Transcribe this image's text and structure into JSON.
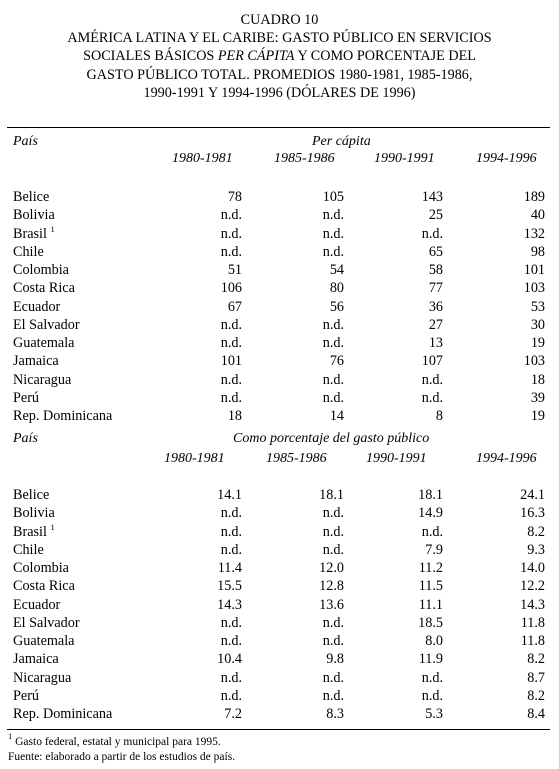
{
  "title": {
    "line1": "CUADRO 10",
    "line2": "AMÉRICA LATINA Y EL CARIBE: GASTO PÚBLICO EN SERVICIOS",
    "line3_a": "SOCIALES BÁSICOS ",
    "line3_b": "PER CÁPITA",
    "line3_c": " Y COMO PORCENTAJE DEL",
    "line4": "GASTO PÚBLICO TOTAL. PROMEDIOS 1980-1981, 1985-1986,",
    "line5": "1990-1991 Y 1994-1996 (DÓLARES DE 1996)"
  },
  "section1": {
    "country_header": "País",
    "group_header": "Per cápita",
    "years": [
      "1980-1981",
      "1985-1986",
      "1990-1991",
      "1994-1996"
    ],
    "rows": [
      {
        "country": "Belice",
        "sup": "",
        "values": [
          "78",
          "105",
          "143",
          "189"
        ]
      },
      {
        "country": "Bolivia",
        "sup": "",
        "values": [
          "n.d.",
          "n.d.",
          "25",
          "40"
        ]
      },
      {
        "country": "Brasil",
        "sup": "1",
        "values": [
          "n.d.",
          "n.d.",
          "n.d.",
          "132"
        ]
      },
      {
        "country": "Chile",
        "sup": "",
        "values": [
          "n.d.",
          "n.d.",
          "65",
          "98"
        ]
      },
      {
        "country": "Colombia",
        "sup": "",
        "values": [
          "51",
          "54",
          "58",
          "101"
        ]
      },
      {
        "country": "Costa Rica",
        "sup": "",
        "values": [
          "106",
          "80",
          "77",
          "103"
        ]
      },
      {
        "country": "Ecuador",
        "sup": "",
        "values": [
          "67",
          "56",
          "36",
          "53"
        ]
      },
      {
        "country": "El Salvador",
        "sup": "",
        "values": [
          "n.d.",
          "n.d.",
          "27",
          "30"
        ]
      },
      {
        "country": "Guatemala",
        "sup": "",
        "values": [
          "n.d.",
          "n.d.",
          "13",
          "19"
        ]
      },
      {
        "country": "Jamaica",
        "sup": "",
        "values": [
          "101",
          "76",
          "107",
          "103"
        ]
      },
      {
        "country": "Nicaragua",
        "sup": "",
        "values": [
          "n.d.",
          "n.d.",
          "n.d.",
          "18"
        ]
      },
      {
        "country": "Perú",
        "sup": "",
        "values": [
          "n.d.",
          "n.d.",
          "n.d.",
          "39"
        ]
      },
      {
        "country": "Rep. Dominicana",
        "sup": "",
        "values": [
          "18",
          "14",
          "8",
          "19"
        ]
      }
    ]
  },
  "section2": {
    "country_header": "País",
    "group_header": "Como porcentaje del gasto público",
    "years": [
      "1980-1981",
      "1985-1986",
      "1990-1991",
      "1994-1996"
    ],
    "rows": [
      {
        "country": "Belice",
        "sup": "",
        "values": [
          "14.1",
          "18.1",
          "18.1",
          "24.1"
        ]
      },
      {
        "country": "Bolivia",
        "sup": "",
        "values": [
          "n.d.",
          "n.d.",
          "14.9",
          "16.3"
        ]
      },
      {
        "country": "Brasil",
        "sup": "1",
        "values": [
          "n.d.",
          "n.d.",
          "n.d.",
          "8.2"
        ]
      },
      {
        "country": "Chile",
        "sup": "",
        "values": [
          "n.d.",
          "n.d.",
          "7.9",
          "9.3"
        ]
      },
      {
        "country": "Colombia",
        "sup": "",
        "values": [
          "11.4",
          "12.0",
          "11.2",
          "14.0"
        ]
      },
      {
        "country": "Costa Rica",
        "sup": "",
        "values": [
          "15.5",
          "12.8",
          "11.5",
          "12.2"
        ]
      },
      {
        "country": "Ecuador",
        "sup": "",
        "values": [
          "14.3",
          "13.6",
          "11.1",
          "14.3"
        ]
      },
      {
        "country": "El Salvador",
        "sup": "",
        "values": [
          "n.d.",
          "n.d.",
          "18.5",
          "11.8"
        ]
      },
      {
        "country": "Guatemala",
        "sup": "",
        "values": [
          "n.d.",
          "n.d.",
          "8.0",
          "11.8"
        ]
      },
      {
        "country": "Jamaica",
        "sup": "",
        "values": [
          "10.4",
          "9.8",
          "11.9",
          "8.2"
        ]
      },
      {
        "country": "Nicaragua",
        "sup": "",
        "values": [
          "n.d.",
          "n.d.",
          "n.d.",
          "8.7"
        ]
      },
      {
        "country": "Perú",
        "sup": "",
        "values": [
          "n.d.",
          "n.d.",
          "n.d.",
          "8.2"
        ]
      },
      {
        "country": "Rep. Dominicana",
        "sup": "",
        "values": [
          "7.2",
          "8.3",
          "5.3",
          "8.4"
        ]
      }
    ]
  },
  "footnotes": {
    "note1_marker": "1",
    "note1_text": " Gasto federal, estatal y municipal para 1995.",
    "source": "Fuente: elaborado a partir de los estudios de país."
  }
}
